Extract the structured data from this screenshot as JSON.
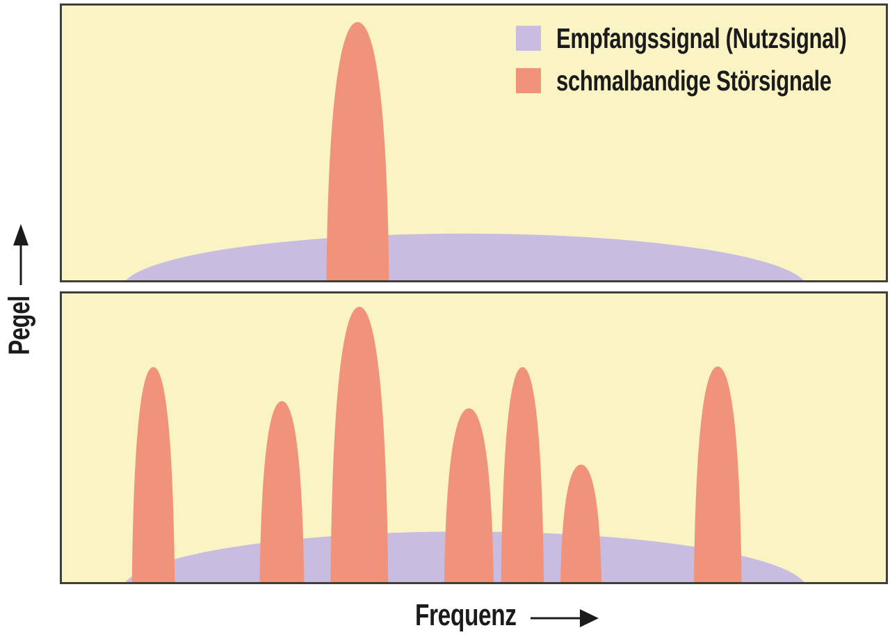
{
  "colors": {
    "page_bg": "#FFFFFF",
    "panel_bg": "#FAF4C5",
    "panel_border": "#3F3F37",
    "nutzsignal": "#C8BDE0",
    "stoersignal": "#F1937A",
    "text": "#1B1B1B"
  },
  "chart_data": {
    "type": "area",
    "title": "",
    "xlabel": "Frequenz",
    "ylabel": "Pegel",
    "axes": {
      "x_ticks": [],
      "y_ticks": [],
      "note": "qualitative sketch axes with direction arrows only; x positions and levels normalized 0-1 per panel"
    },
    "legend": [
      {
        "label": "Empfangssignal (Nutzsignal)",
        "color": "#C8BDE0"
      },
      {
        "label": "schmalbandige Störsignale",
        "color": "#F1937A"
      }
    ],
    "panels": [
      {
        "id": "top",
        "series": [
          {
            "name": "Empfangssignal (Nutzsignal)",
            "shape": "broadband-dome",
            "x_center": 0.489,
            "x_halfwidth": 0.416,
            "level": 0.17
          },
          {
            "name": "schmalbandige Störsignale",
            "shape": "narrow-peaks",
            "peaks": [
              {
                "x": 0.359,
                "halfwidth": 0.038,
                "level": 0.94
              }
            ]
          }
        ]
      },
      {
        "id": "bottom",
        "series": [
          {
            "name": "Empfangssignal (Nutzsignal)",
            "shape": "broadband-dome",
            "x_center": 0.489,
            "x_halfwidth": 0.416,
            "level": 0.175
          },
          {
            "name": "schmalbandige Störsignale",
            "shape": "narrow-peaks",
            "peaks": [
              {
                "x": 0.111,
                "halfwidth": 0.026,
                "level": 0.745
              },
              {
                "x": 0.267,
                "halfwidth": 0.027,
                "level": 0.627
              },
              {
                "x": 0.361,
                "halfwidth": 0.035,
                "level": 0.954
              },
              {
                "x": 0.494,
                "halfwidth": 0.03,
                "level": 0.602
              },
              {
                "x": 0.559,
                "halfwidth": 0.026,
                "level": 0.745
              },
              {
                "x": 0.63,
                "halfwidth": 0.025,
                "level": 0.407
              },
              {
                "x": 0.796,
                "halfwidth": 0.029,
                "level": 0.747
              }
            ]
          }
        ]
      }
    ]
  }
}
